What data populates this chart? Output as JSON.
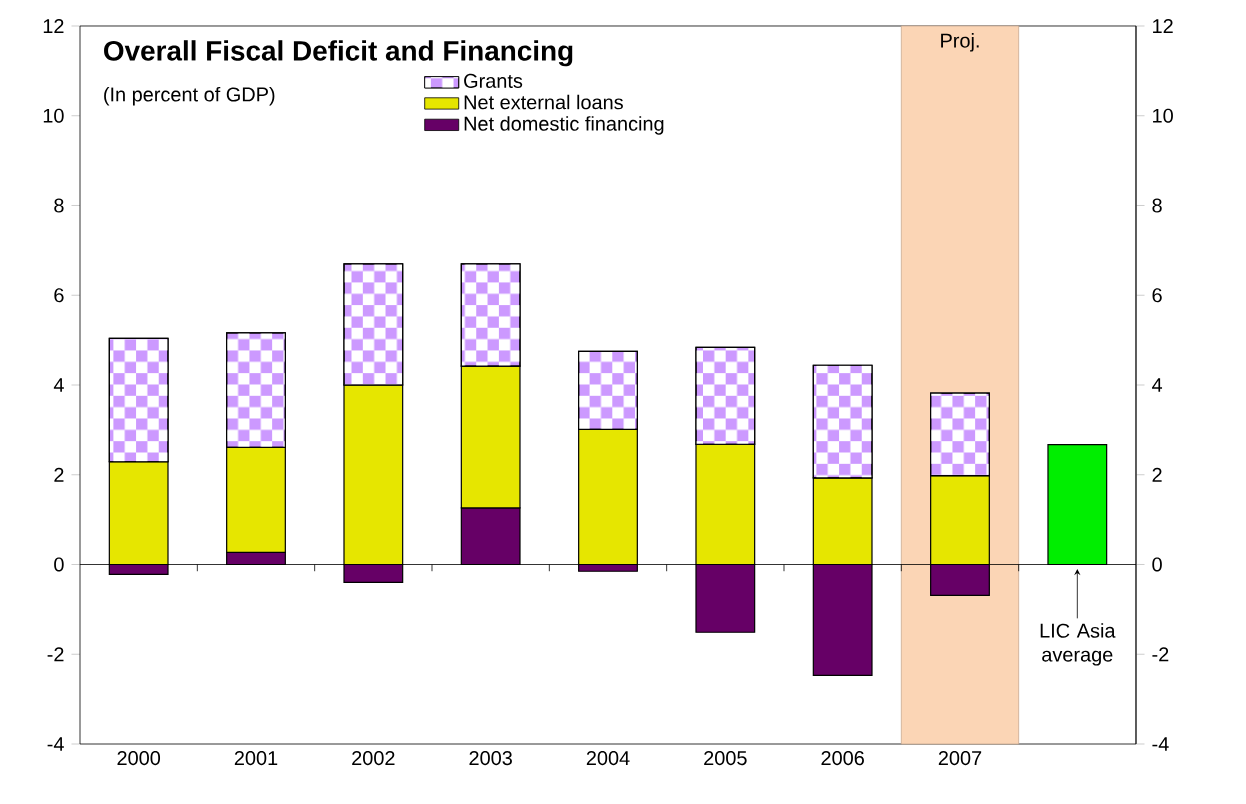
{
  "chart_data": {
    "type": "bar",
    "stacked": true,
    "title": "Overall Fiscal Deficit and Financing",
    "subtitle": "(In percent of GDP)",
    "categories": [
      "2000",
      "2001",
      "2002",
      "2003",
      "2004",
      "2005",
      "2006",
      "2007",
      null
    ],
    "series": [
      {
        "name": "Net domestic financing",
        "color": "#660066",
        "values": [
          -0.22,
          0.27,
          -0.4,
          1.26,
          -0.15,
          -1.51,
          -2.47,
          -0.69,
          null
        ]
      },
      {
        "name": "Net external loans",
        "color": "#e6e600",
        "values": [
          2.29,
          2.34,
          4.0,
          3.16,
          3.01,
          2.68,
          1.93,
          1.98,
          null
        ]
      },
      {
        "name": "Grants",
        "color": "#cc99ff",
        "values": [
          2.75,
          2.55,
          2.7,
          2.28,
          1.74,
          2.16,
          2.51,
          1.84,
          null
        ]
      },
      {
        "color": "#00ee00",
        "values": [
          null,
          null,
          null,
          null,
          null,
          null,
          null,
          null,
          2.67
        ]
      }
    ],
    "annotations": [
      "LIC Asia average"
    ],
    "bands": [
      {
        "axis": "x",
        "from": "2007",
        "to": "2007",
        "label": "Proj.",
        "color": "#fbd5b5"
      }
    ],
    "ylim": [
      -4,
      12
    ],
    "yticks": [
      -4,
      -2,
      0,
      2,
      4,
      6,
      8,
      10,
      12
    ],
    "y2lim": [
      -4,
      12
    ],
    "y2ticks": [
      -4,
      -2,
      0,
      2,
      4,
      6,
      8,
      10,
      12
    ],
    "legend": "top left"
  }
}
